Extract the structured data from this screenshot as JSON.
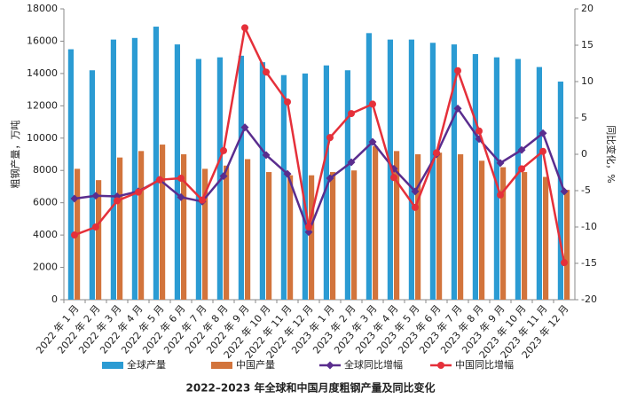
{
  "chart_data": {
    "type": "bar_line",
    "title": "2022–2023 年全球和中国月度粗钢产量及同比变化",
    "ylabel": "粗钢产量，万吨",
    "y2label": "同比变化，%",
    "categories": [
      "2022 年 1 月",
      "2022 年 2 月",
      "2022 年 3 月",
      "2022 年 4 月",
      "2022 年 5 月",
      "2022 年 6 月",
      "2022 年 7 月",
      "2022 年 8 月",
      "2022 年 9 月",
      "2022 年 10 月",
      "2022 年 11 月",
      "2022 年 12 月",
      "2023 年 1 月",
      "2023 年 2 月",
      "2023 年 3 月",
      "2023 年 4 月",
      "2023 年 5 月",
      "2023 年 6 月",
      "2023 年 7 月",
      "2023 年 8 月",
      "2023 年 9 月",
      "2023 年 10 月",
      "2023 年 11 月",
      "2023 年 12 月"
    ],
    "ylim": [
      0,
      18000
    ],
    "yticks": [
      0,
      2000,
      4000,
      6000,
      8000,
      10000,
      12000,
      14000,
      16000,
      18000
    ],
    "y2lim": [
      -20,
      20
    ],
    "y2ticks": [
      -20,
      -15,
      -10,
      -5,
      0,
      5,
      10,
      15,
      20
    ],
    "series": [
      {
        "name": "全球产量",
        "type": "bar",
        "color": "#2b9bd3",
        "values": [
          15500,
          14200,
          16100,
          16200,
          16900,
          15800,
          14900,
          15000,
          15100,
          14700,
          13900,
          14000,
          14500,
          14200,
          16500,
          16100,
          16100,
          15900,
          15800,
          15200,
          15000,
          14900,
          14400,
          13500
        ]
      },
      {
        "name": "中国产量",
        "type": "bar",
        "color": "#d2743c",
        "values": [
          8100,
          7400,
          8800,
          9200,
          9600,
          9000,
          8100,
          8300,
          8700,
          7900,
          7700,
          7700,
          7900,
          8000,
          9500,
          9200,
          9000,
          9100,
          9000,
          8600,
          8200,
          7900,
          7600,
          6800
        ]
      },
      {
        "name": "全球同比增幅",
        "type": "line",
        "axis": "y2",
        "color": "#5a2d8e",
        "marker": "diamond",
        "values": [
          -6.1,
          -5.7,
          -5.8,
          -5.1,
          -3.5,
          -5.9,
          -6.5,
          -3.0,
          3.7,
          -0.1,
          -2.7,
          -10.7,
          -3.3,
          -1.1,
          1.7,
          -2.0,
          -5.1,
          0,
          6.3,
          2.1,
          -1.2,
          0.6,
          2.9,
          -5.1
        ]
      },
      {
        "name": "中国同比增幅",
        "type": "line",
        "axis": "y2",
        "color": "#e5303a",
        "marker": "circle",
        "values": [
          -11.1,
          -10.0,
          -6.4,
          -5.2,
          -3.5,
          -3.3,
          -6.3,
          0.5,
          17.4,
          11.3,
          7.2,
          -10.0,
          2.3,
          5.6,
          6.9,
          -3.2,
          -7.3,
          0.2,
          11.5,
          3.2,
          -5.6,
          -2.0,
          0.4,
          -14.9
        ]
      }
    ]
  }
}
